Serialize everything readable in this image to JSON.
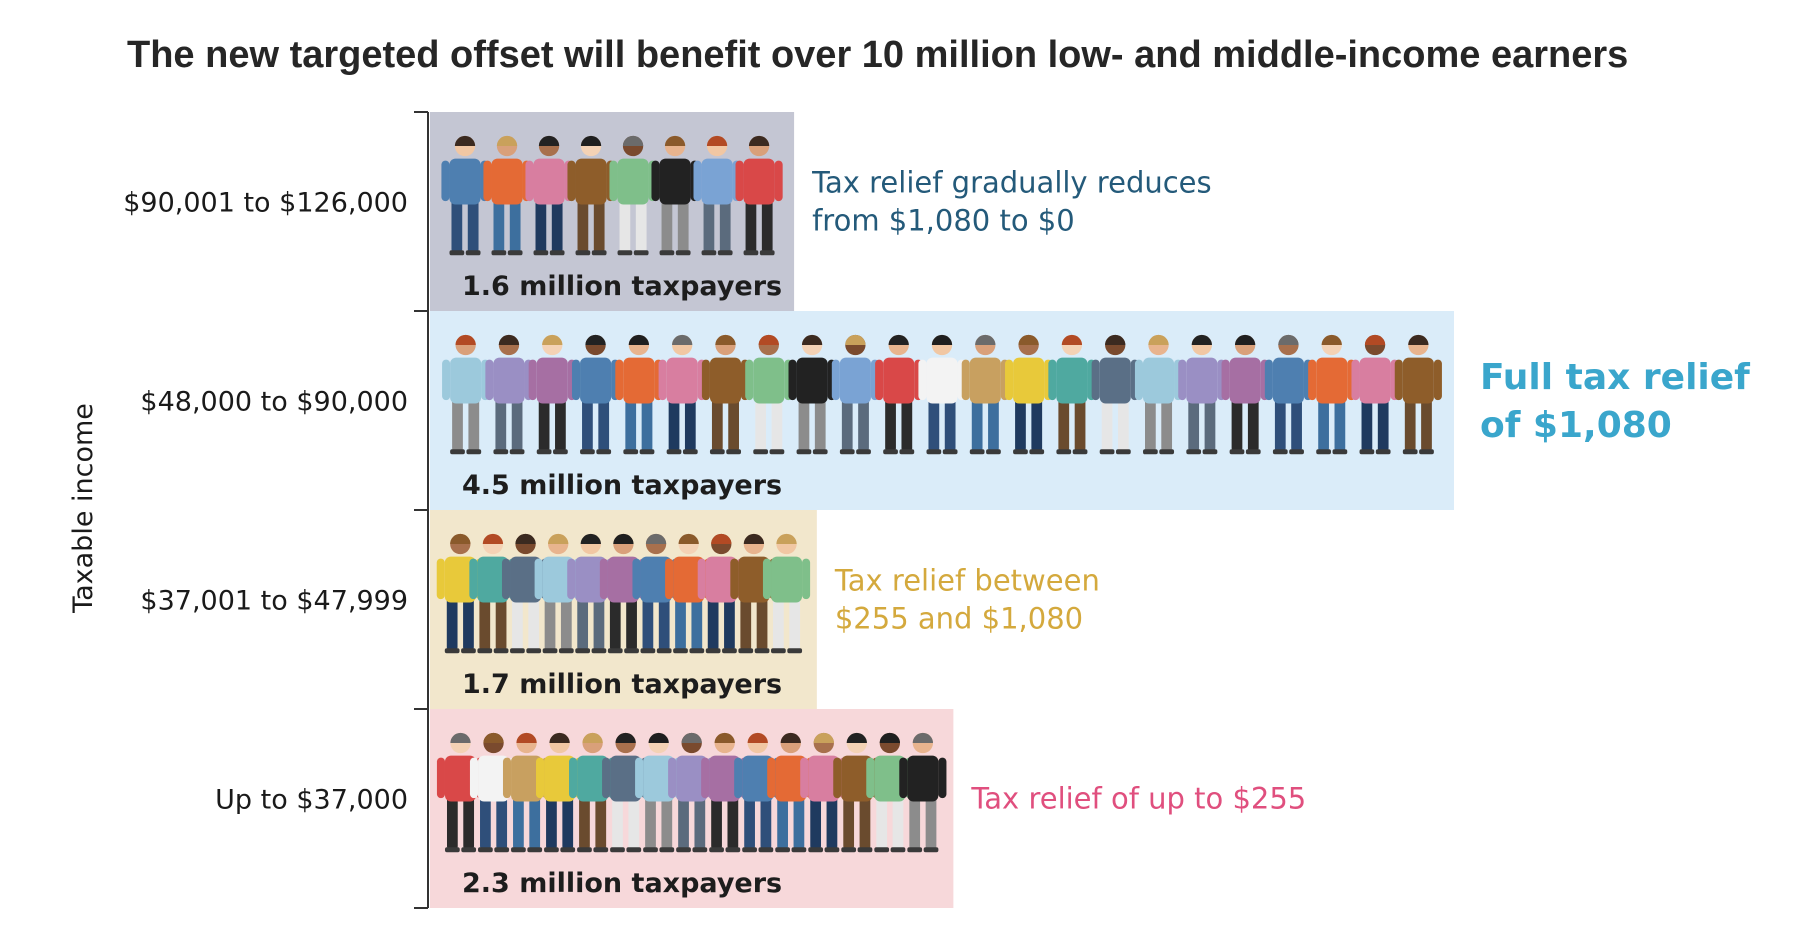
{
  "title": "The new targeted offset will benefit over 10 million low- and middle-income earners",
  "chart_data": {
    "type": "bar",
    "orientation": "horizontal",
    "ylabel": "Taxable income",
    "xlabel": "",
    "unit": "million taxpayers",
    "grid": false,
    "categories": [
      "$90,001 to $126,000",
      "$48,000 to $90,000",
      "$37,001 to $47,999",
      "Up to $37,000"
    ],
    "values": [
      1.6,
      4.5,
      1.7,
      2.3
    ],
    "bar_labels": [
      "1.6 million taxpayers",
      "4.5 million taxpayers",
      "1.7 million taxpayers",
      "2.3 million taxpayers"
    ],
    "people_shown": [
      8,
      23,
      11,
      15
    ],
    "colors": [
      "#c4c6d3",
      "#daecf9",
      "#f2e7cc",
      "#f7d8da"
    ],
    "annotations": [
      {
        "lines": [
          "Tax relief gradually reduces",
          "from $1,080 to $0"
        ],
        "color": "#245a7a",
        "weight": "normal"
      },
      {
        "lines": [
          "Full tax relief",
          "of $1,080"
        ],
        "color": "#3aa6cc",
        "weight": "bold"
      },
      {
        "lines": [
          "Tax relief between",
          "$255 and $1,080"
        ],
        "color": "#d4a93d",
        "weight": "normal"
      },
      {
        "lines": [
          "Tax relief of up to $255"
        ],
        "color": "#e04f7e",
        "weight": "normal"
      }
    ]
  }
}
